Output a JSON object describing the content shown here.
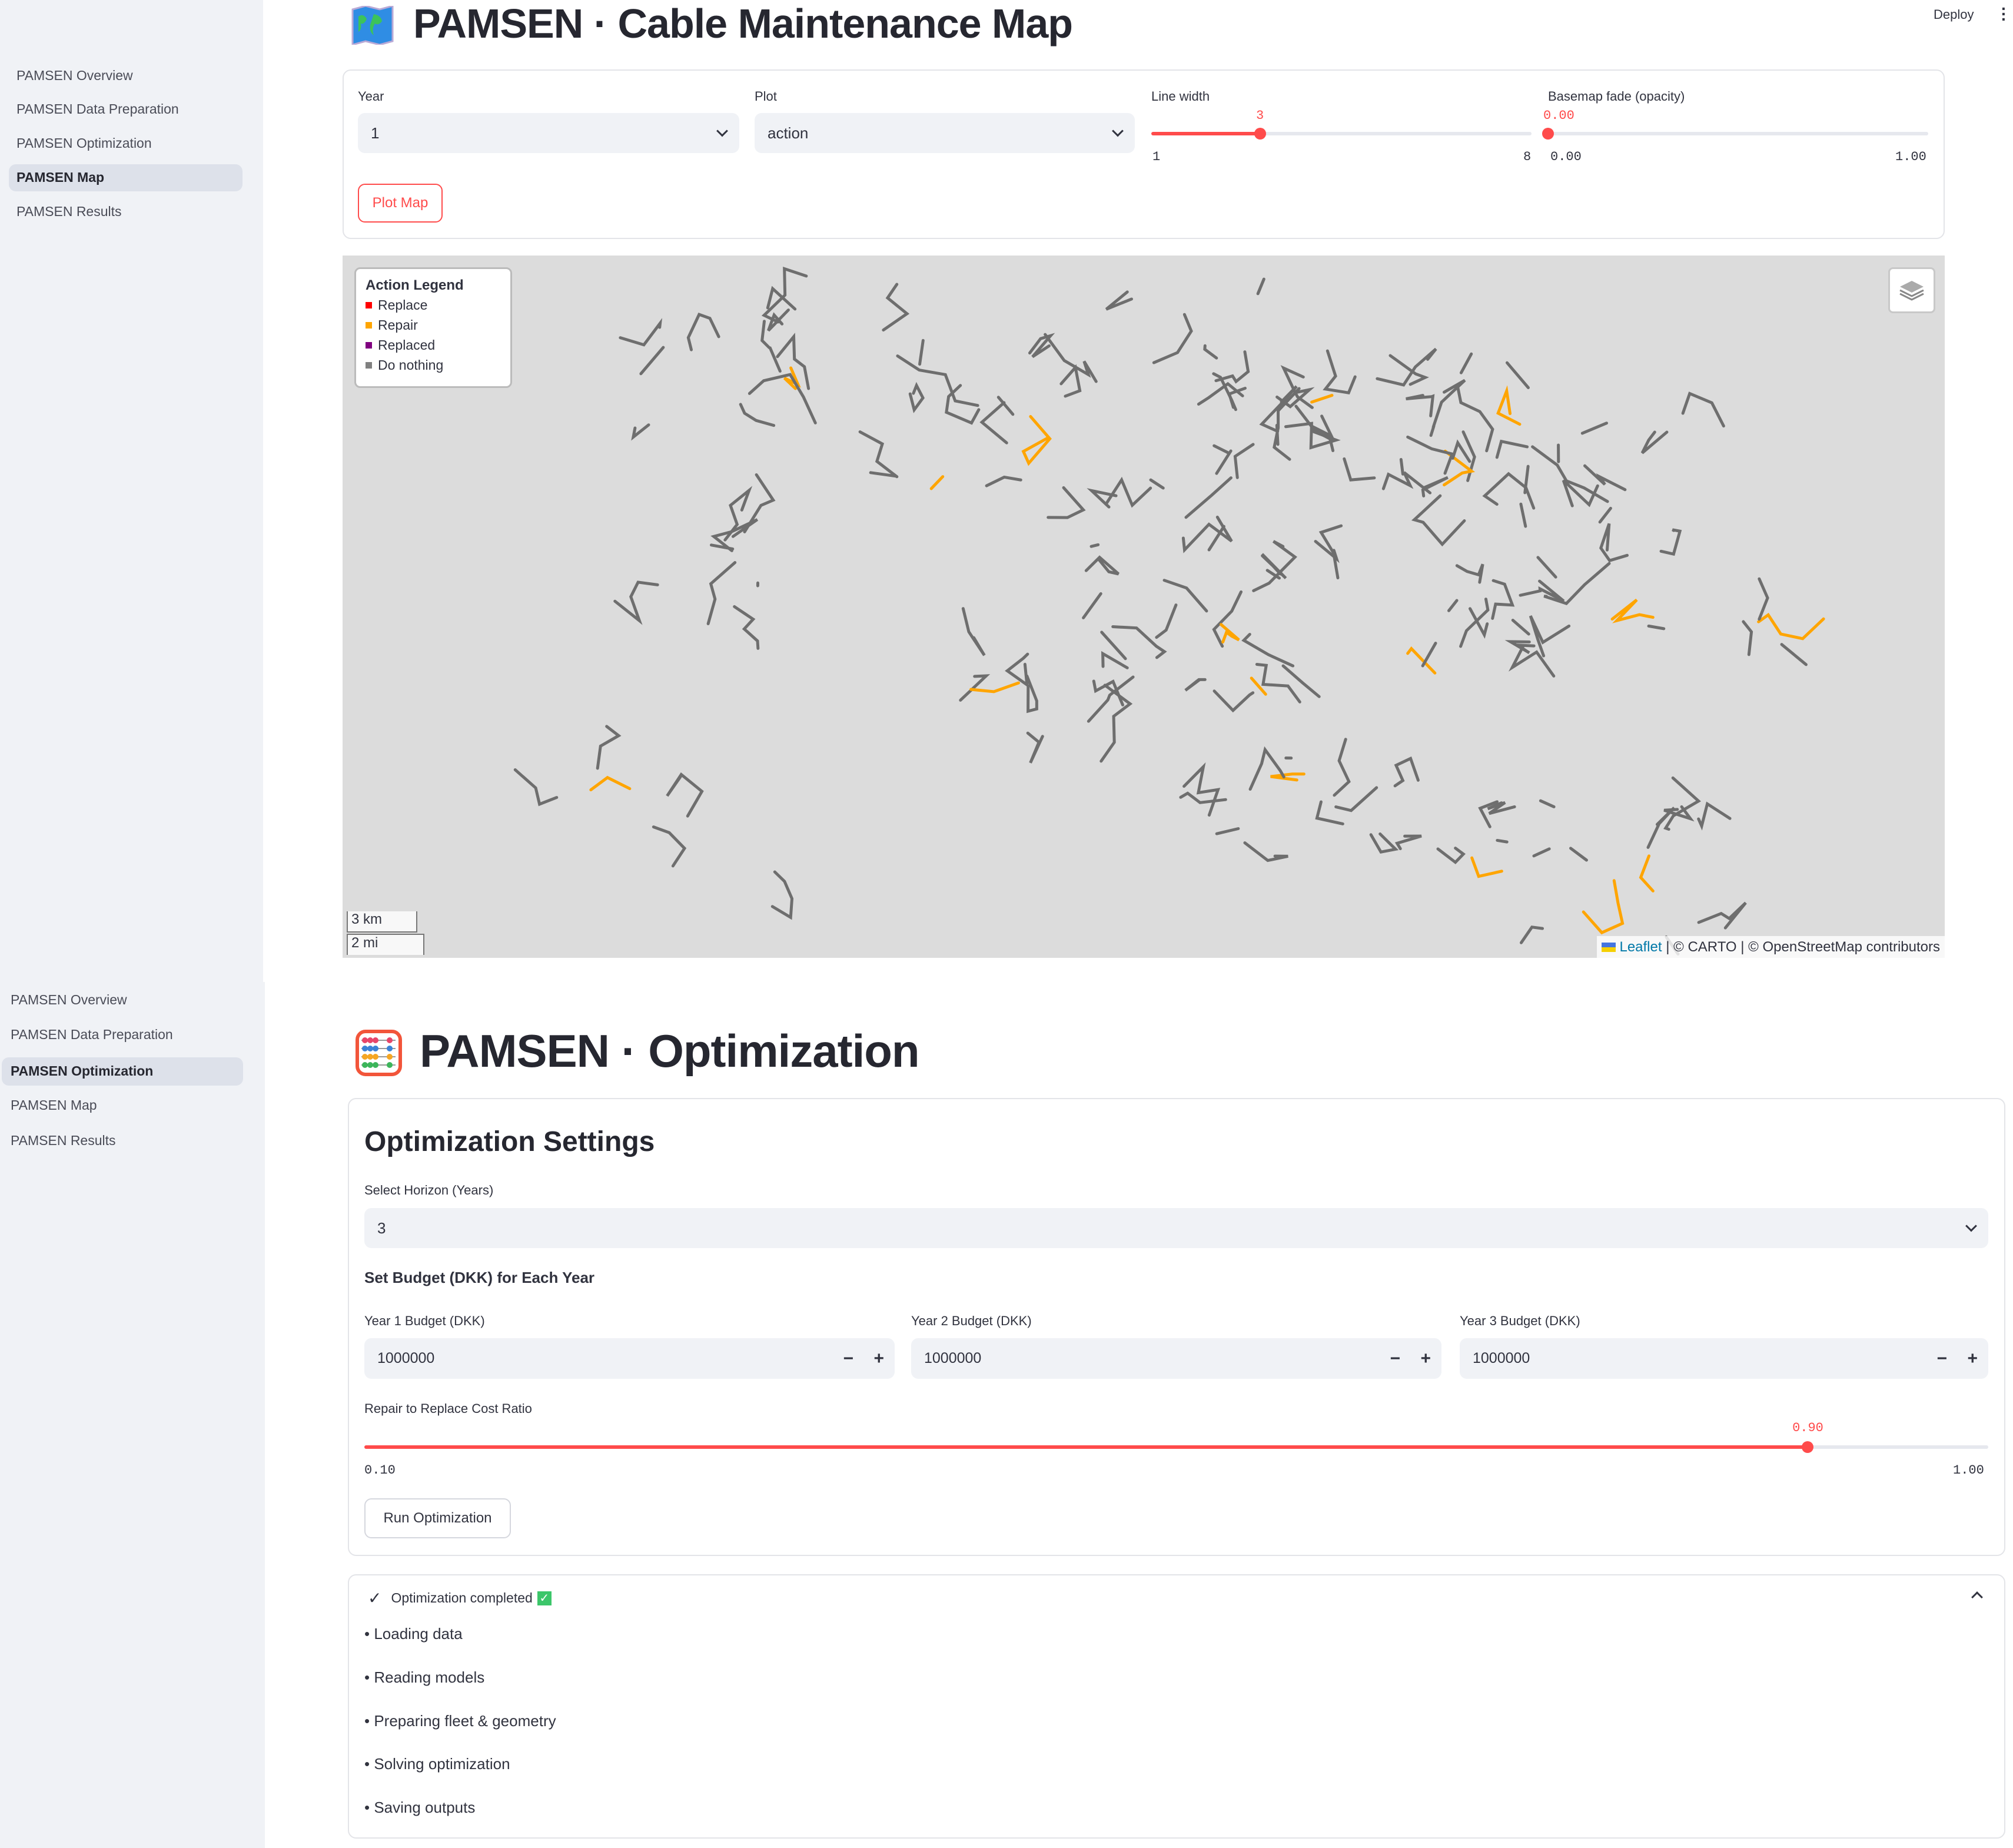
{
  "sidebar": {
    "items": [
      {
        "label": "PAMSEN Overview"
      },
      {
        "label": "PAMSEN Data Preparation"
      },
      {
        "label": "PAMSEN Optimization"
      },
      {
        "label": "PAMSEN Map"
      },
      {
        "label": "PAMSEN Results"
      }
    ],
    "active_top": "PAMSEN Map",
    "active_bottom": "PAMSEN Optimization"
  },
  "header": {
    "deploy": "Deploy"
  },
  "map_page": {
    "title": "PAMSEN · Cable Maintenance Map",
    "icon": "world-map-icon",
    "year": {
      "label": "Year",
      "value": "1"
    },
    "plot": {
      "label": "Plot",
      "value": "action"
    },
    "line_width": {
      "label": "Line width",
      "value": "3",
      "min": "1",
      "max": "8",
      "fraction": 0.2857
    },
    "basemap_fade": {
      "label": "Basemap fade (opacity)",
      "value": "0.00",
      "min": "0.00",
      "max": "1.00",
      "fraction": 0
    },
    "plot_button": "Plot Map",
    "legend": {
      "title": "Action Legend",
      "items": [
        {
          "label": "Replace",
          "color": "#ff0000"
        },
        {
          "label": "Repair",
          "color": "#ffa500"
        },
        {
          "label": "Replaced",
          "color": "#800080"
        },
        {
          "label": "Do nothing",
          "color": "#808080"
        }
      ]
    },
    "scale": {
      "km": "3 km",
      "mi": "2 mi"
    },
    "attribution": {
      "leaflet": "Leaflet",
      "rest": " | © CARTO | © OpenStreetMap contributors"
    },
    "colors": {
      "basemap": "#dcdcdc",
      "cable": "#6e6e6e",
      "repair": "#ffa500"
    }
  },
  "opt_page": {
    "title": "PAMSEN · Optimization",
    "icon": "abacus-icon",
    "settings_title": "Optimization Settings",
    "horizon": {
      "label": "Select Horizon (Years)",
      "value": "3"
    },
    "budget_heading": "Set Budget (DKK) for Each Year",
    "budgets": [
      {
        "label": "Year 1 Budget (DKK)",
        "value": "1000000"
      },
      {
        "label": "Year 2 Budget (DKK)",
        "value": "1000000"
      },
      {
        "label": "Year 3 Budget (DKK)",
        "value": "1000000"
      }
    ],
    "ratio": {
      "label": "Repair to Replace Cost Ratio",
      "value": "0.90",
      "min": "0.10",
      "max": "1.00",
      "fraction": 0.8889
    },
    "run_button": "Run Optimization",
    "status": {
      "label": "Optimization completed",
      "steps": [
        "• Loading data",
        "• Reading models",
        "• Preparing fleet & geometry",
        "• Solving optimization",
        "• Saving outputs"
      ]
    }
  },
  "accent": "#ff4b4b"
}
